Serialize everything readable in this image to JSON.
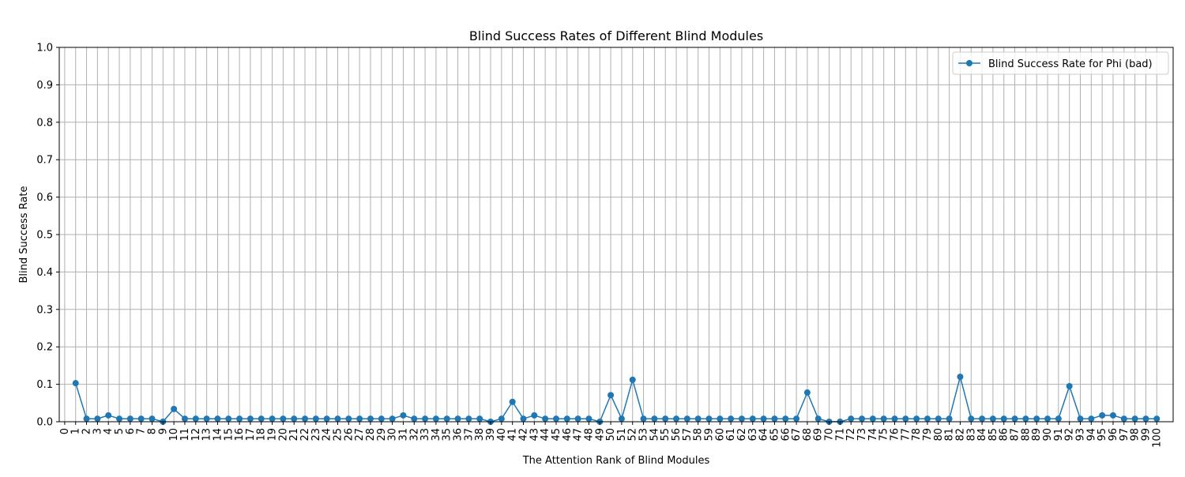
{
  "chart_data": {
    "type": "line",
    "title": "Blind Success Rates of Different Blind Modules",
    "xlabel": "The Attention Rank of Blind Modules",
    "ylabel": "Blind Success Rate",
    "xlim": [
      -0.5,
      101.5
    ],
    "ylim": [
      0.0,
      1.0
    ],
    "xticks": [
      0,
      1,
      2,
      3,
      4,
      5,
      6,
      7,
      8,
      9,
      10,
      11,
      12,
      13,
      14,
      15,
      16,
      17,
      18,
      19,
      20,
      21,
      22,
      23,
      24,
      25,
      26,
      27,
      28,
      29,
      30,
      31,
      32,
      33,
      34,
      35,
      36,
      37,
      38,
      39,
      40,
      41,
      42,
      43,
      44,
      45,
      46,
      47,
      48,
      49,
      50,
      51,
      52,
      53,
      54,
      55,
      56,
      57,
      58,
      59,
      60,
      61,
      62,
      63,
      64,
      65,
      66,
      67,
      68,
      69,
      70,
      71,
      72,
      73,
      74,
      75,
      76,
      77,
      78,
      79,
      80,
      81,
      82,
      83,
      84,
      85,
      86,
      87,
      88,
      89,
      90,
      91,
      92,
      93,
      94,
      95,
      96,
      97,
      98,
      99,
      100
    ],
    "yticks": [
      "0.0",
      "0.1",
      "0.2",
      "0.3",
      "0.4",
      "0.5",
      "0.6",
      "0.7",
      "0.8",
      "0.9",
      "1.0"
    ],
    "grid": true,
    "legend_position": "top-right",
    "series": [
      {
        "name": "Blind Success Rate for Phi (bad)",
        "color": "#1f77b4",
        "marker": "circle",
        "x": [
          1,
          2,
          3,
          4,
          5,
          6,
          7,
          8,
          9,
          10,
          11,
          12,
          13,
          14,
          15,
          16,
          17,
          18,
          19,
          20,
          21,
          22,
          23,
          24,
          25,
          26,
          27,
          28,
          29,
          30,
          31,
          32,
          33,
          34,
          35,
          36,
          37,
          38,
          39,
          40,
          41,
          42,
          43,
          44,
          45,
          46,
          47,
          48,
          49,
          50,
          51,
          52,
          53,
          54,
          55,
          56,
          57,
          58,
          59,
          60,
          61,
          62,
          63,
          64,
          65,
          66,
          67,
          68,
          69,
          70,
          71,
          72,
          73,
          74,
          75,
          76,
          77,
          78,
          79,
          80,
          81,
          82,
          83,
          84,
          85,
          86,
          87,
          88,
          89,
          90,
          91,
          92,
          93,
          94,
          95,
          96,
          97,
          98,
          99,
          100
        ],
        "y": [
          0.103,
          0.008,
          0.008,
          0.017,
          0.008,
          0.008,
          0.008,
          0.008,
          0.0,
          0.034,
          0.008,
          0.008,
          0.008,
          0.008,
          0.008,
          0.008,
          0.008,
          0.008,
          0.008,
          0.008,
          0.008,
          0.008,
          0.008,
          0.008,
          0.008,
          0.008,
          0.008,
          0.008,
          0.008,
          0.008,
          0.017,
          0.008,
          0.008,
          0.008,
          0.008,
          0.008,
          0.008,
          0.008,
          0.0,
          0.008,
          0.053,
          0.008,
          0.017,
          0.008,
          0.008,
          0.008,
          0.008,
          0.008,
          0.0,
          0.071,
          0.008,
          0.112,
          0.008,
          0.008,
          0.008,
          0.008,
          0.008,
          0.008,
          0.008,
          0.008,
          0.008,
          0.008,
          0.008,
          0.008,
          0.008,
          0.008,
          0.008,
          0.078,
          0.008,
          0.0,
          0.0,
          0.008,
          0.008,
          0.008,
          0.008,
          0.008,
          0.008,
          0.008,
          0.008,
          0.008,
          0.008,
          0.12,
          0.008,
          0.008,
          0.008,
          0.008,
          0.008,
          0.008,
          0.008,
          0.008,
          0.008,
          0.095,
          0.008,
          0.008,
          0.017,
          0.017,
          0.008,
          0.008,
          0.008,
          0.008
        ]
      }
    ]
  }
}
